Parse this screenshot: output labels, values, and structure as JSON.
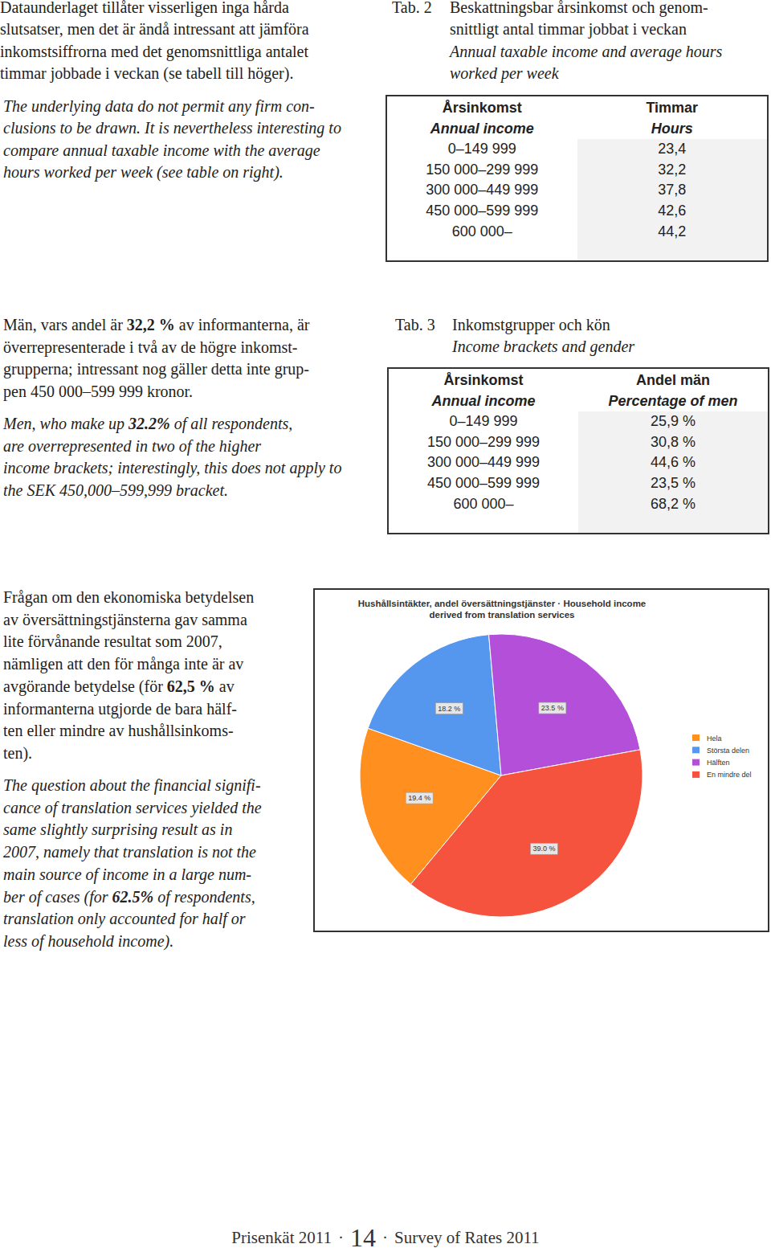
{
  "document": {
    "sections": [
      {
        "text_sv": [
          "Dataunderlaget tillåter visserligen inga hårda",
          "slutsatser, men det är ändå intressant att jämföra",
          "inkomstsiffrorna med det genomsnittliga antalet",
          "timmar jobbade i veckan (se tabell till höger)."
        ],
        "text_en": [
          "The underlying data do not permit any firm con-",
          "clusions to be drawn. It is nevertheless interesting to",
          "compare annual taxable income with the average",
          "hours worked per week (see table on right)."
        ],
        "table": {
          "label": "Tab. 2",
          "caption_sv": [
            "Beskattningsbar årsinkomst och genom-",
            "snittligt antal timmar jobbat i veckan"
          ],
          "caption_en": [
            "Annual taxable income and average hours",
            "worked per week"
          ],
          "header_sv": [
            "Årsinkomst",
            "Timmar"
          ],
          "header_en": [
            "Annual income",
            "Hours"
          ],
          "rows": [
            [
              "0–149 999",
              "23,4"
            ],
            [
              "150 000–299 999",
              "32,2"
            ],
            [
              "300 000–449 999",
              "37,8"
            ],
            [
              "450 000–599 999",
              "42,6"
            ],
            [
              "600 000–",
              "44,2"
            ]
          ]
        }
      },
      {
        "text_sv": [
          [
            "Män, vars andel är ",
            {
              "bold": "32,2 %"
            },
            " av informanterna, är"
          ],
          "överrepresenterade i två av de högre inkomst-",
          "grupperna; intressant nog gäller detta inte grup-",
          "pen 450 000–599 999 kronor."
        ],
        "text_en": [
          [
            "Men, who make up ",
            {
              "bold": "32.2%"
            },
            " of all respondents,"
          ],
          "are overrepresented in two of the higher",
          "income brackets; interestingly, this does not apply to",
          "the SEK 450,000–599,999 bracket."
        ],
        "table": {
          "label": "Tab. 3",
          "caption_sv": [
            "Inkomstgrupper och kön"
          ],
          "caption_en": [
            "Income brackets and gender"
          ],
          "header_sv": [
            "Årsinkomst",
            "Andel män"
          ],
          "header_en": [
            "Annual income",
            "Percentage of men"
          ],
          "rows": [
            [
              "0–149 999",
              "25,9 %"
            ],
            [
              "150 000–299 999",
              "30,8 %"
            ],
            [
              "300 000–449 999",
              "44,6 %"
            ],
            [
              "450 000–599 999",
              "23,5 %"
            ],
            [
              "600 000–",
              "68,2 %"
            ]
          ]
        }
      },
      {
        "text_sv": [
          "Frågan om den ekonomiska betydelsen",
          "av översättningstjänsterna gav samma",
          "lite förvånande resultat som 2007,",
          "nämligen att den för många inte är av",
          [
            "avgörande betydelse (för ",
            {
              "bold": "62,5 %"
            },
            " av"
          ],
          "informanterna utgjorde de bara hälf-",
          "ten eller mindre av hushållsinkoms-",
          "ten)."
        ],
        "text_en": [
          "The question about the financial signifi-",
          "cance of translation services yielded the",
          "same slightly surprising result as in",
          "2007, namely that translation is not the",
          "main source of income in a large num-",
          [
            "ber of cases (for ",
            {
              "bold": "62.5%"
            },
            " of respondents,"
          ],
          "translation only accounted for half or",
          "less of household income)."
        ]
      }
    ],
    "footer": {
      "left": "Prisenkät 2011",
      "page": "14",
      "right": "Survey of Rates 2011",
      "separator": "·"
    }
  },
  "chart_data": {
    "type": "pie",
    "title": [
      "Hushållsintäkter, andel översättningstjänster · Household income",
      "derived from translation services"
    ],
    "categories": [
      "Hela",
      "Största delen",
      "Hälften",
      "En mindre del"
    ],
    "values": [
      19.4,
      18.2,
      23.5,
      39.0
    ],
    "value_labels": [
      "19.4 %",
      "18.2 %",
      "23.5 %",
      "39.0 %"
    ],
    "colors": [
      "#ff8f1f",
      "#5596ee",
      "#b34fd8",
      "#f5533d"
    ],
    "data_labels": true,
    "legend": "right"
  }
}
